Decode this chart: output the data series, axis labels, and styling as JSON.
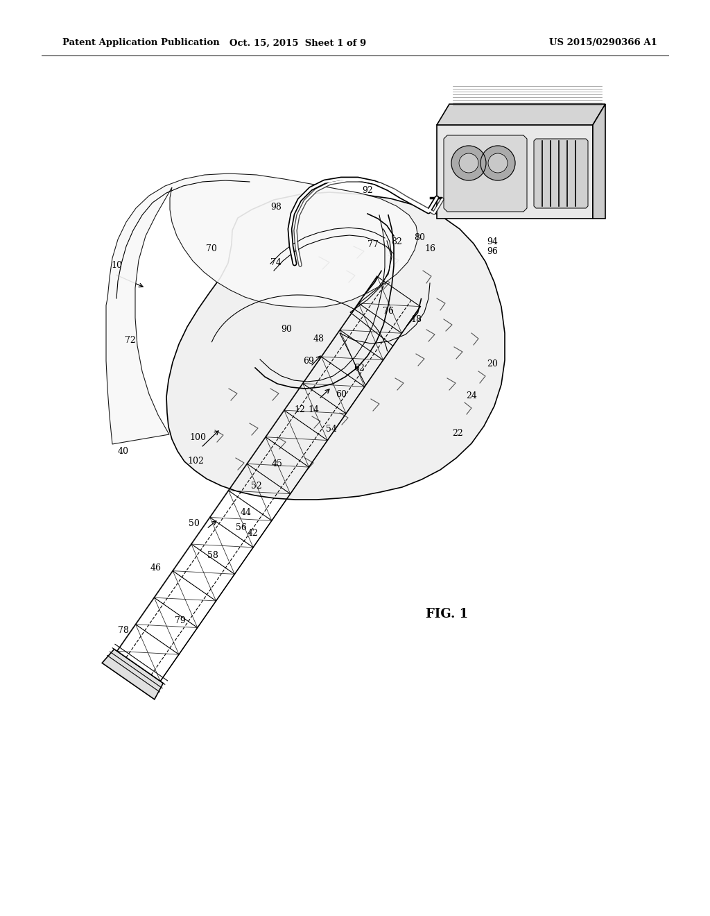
{
  "bg_color": "#ffffff",
  "line_color": "#000000",
  "header_left": "Patent Application Publication",
  "header_mid": "Oct. 15, 2015  Sheet 1 of 9",
  "header_right": "US 2015/0290366 A1",
  "fig_label": "FIG. 1",
  "header_fontsize": 9.5,
  "label_fontsize": 9,
  "figlabel_fontsize": 13
}
